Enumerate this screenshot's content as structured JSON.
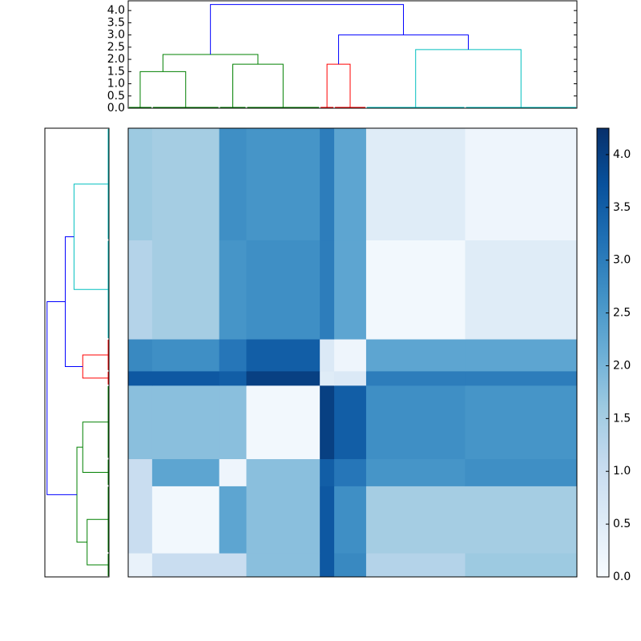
{
  "chart_data": {
    "type": "clustermap",
    "blocks": [
      null,
      null,
      null,
      null,
      null,
      null,
      null,
      null
    ],
    "sizes": [
      15,
      42,
      17,
      46,
      9,
      20,
      62,
      70
    ],
    "matrix": [
      [
        0.3,
        1.0,
        1.0,
        1.8,
        3.6,
        2.8,
        1.3,
        1.6
      ],
      [
        1.0,
        0.1,
        2.3,
        1.8,
        3.6,
        2.7,
        1.5,
        1.5
      ],
      [
        1.0,
        2.3,
        0.2,
        1.8,
        3.5,
        3.1,
        2.6,
        2.7
      ],
      [
        1.8,
        1.8,
        1.8,
        0.1,
        4.0,
        3.5,
        2.7,
        2.6
      ],
      [
        3.6,
        3.6,
        3.5,
        4.0,
        0.5,
        0.6,
        3.0,
        3.0
      ],
      [
        2.8,
        2.7,
        3.1,
        3.5,
        0.6,
        0.2,
        2.3,
        2.3
      ],
      [
        1.3,
        1.5,
        2.6,
        2.7,
        3.0,
        2.3,
        0.1,
        0.5
      ],
      [
        1.6,
        1.5,
        2.7,
        2.6,
        3.0,
        2.3,
        0.5,
        0.2
      ]
    ],
    "links": [
      {
        "left": 0,
        "right": 1,
        "height": 1.5,
        "color": "#008000"
      },
      {
        "left": 2,
        "right": 3,
        "height": 1.8,
        "color": "#008000"
      },
      {
        "left": 8,
        "right": 9,
        "height": 2.2,
        "color": "#008000"
      },
      {
        "left": 4,
        "right": 5,
        "height": 1.8,
        "color": "#ff0000"
      },
      {
        "left": 6,
        "right": 7,
        "height": 2.4,
        "color": "#00bfbf"
      },
      {
        "left": 11,
        "right": 12,
        "height": 3.0,
        "color": "#0000ff"
      },
      {
        "left": 10,
        "right": 13,
        "height": 4.25,
        "color": "#0000ff"
      }
    ],
    "ylim": [
      0,
      4.4
    ],
    "yticks": [
      {
        "value": 0,
        "label": "0.0"
      },
      {
        "value": 0.5,
        "label": "0.5"
      },
      {
        "value": 1,
        "label": "1.0"
      },
      {
        "value": 1.5,
        "label": "1.5"
      },
      {
        "value": 2,
        "label": "2.0"
      },
      {
        "value": 2.5,
        "label": "2.5"
      },
      {
        "value": 3,
        "label": "3.0"
      },
      {
        "value": 3.5,
        "label": "3.5"
      },
      {
        "value": 4,
        "label": "4.0"
      }
    ],
    "colormap": "Blues",
    "clim": [
      0,
      4.25
    ],
    "cticks": [
      {
        "value": 0,
        "label": "0.0"
      },
      {
        "value": 0.5,
        "label": "0.5"
      },
      {
        "value": 1,
        "label": "1.0"
      },
      {
        "value": 1.5,
        "label": "1.5"
      },
      {
        "value": 2,
        "label": "2.0"
      },
      {
        "value": 2.5,
        "label": "2.5"
      },
      {
        "value": 3,
        "label": "3.0"
      },
      {
        "value": 3.5,
        "label": "3.5"
      },
      {
        "value": 4,
        "label": "4.0"
      }
    ]
  }
}
